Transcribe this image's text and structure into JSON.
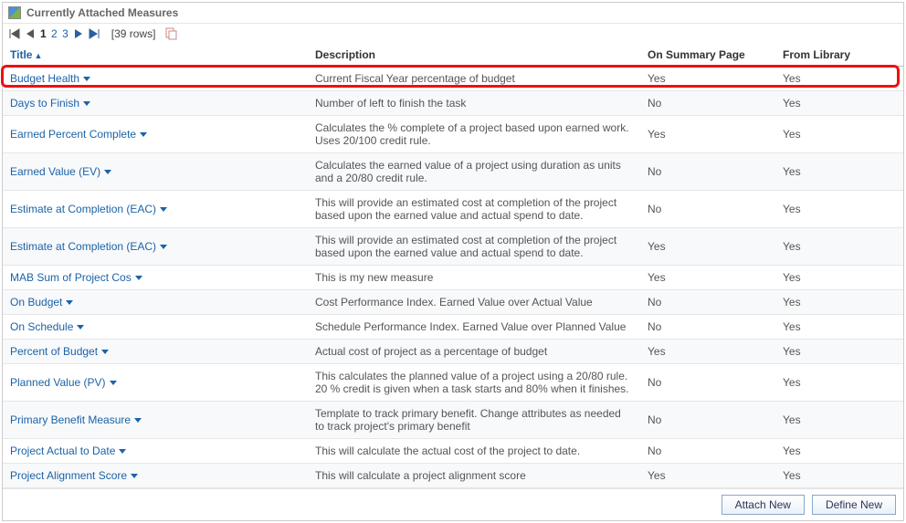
{
  "panel": {
    "title": "Currently Attached Measures"
  },
  "pager": {
    "pages": [
      "1",
      "2",
      "3"
    ],
    "current": "1",
    "row_count_label": "[39 rows]"
  },
  "columns": {
    "title": {
      "label": "Title",
      "sorted": true
    },
    "desc": {
      "label": "Description",
      "sorted": false
    },
    "summary": {
      "label": "On Summary Page",
      "sorted": false
    },
    "library": {
      "label": "From Library",
      "sorted": false
    }
  },
  "rows": [
    {
      "title": "Budget Health",
      "desc": "Current Fiscal Year percentage of budget",
      "summary": "Yes",
      "library": "Yes",
      "highlighted": true
    },
    {
      "title": "Days to Finish",
      "desc": "Number of left to finish the task",
      "summary": "No",
      "library": "Yes"
    },
    {
      "title": "Earned Percent Complete",
      "desc": "Calculates the % complete of a project based upon earned work. Uses 20/100 credit rule.",
      "summary": "Yes",
      "library": "Yes"
    },
    {
      "title": "Earned Value (EV)",
      "desc": "Calculates the earned value of a project using duration as units and a 20/80 credit rule.",
      "summary": "No",
      "library": "Yes"
    },
    {
      "title": "Estimate at Completion (EAC)",
      "desc": "This will provide an estimated cost at completion of the project based upon the earned value and actual spend to date.",
      "summary": "No",
      "library": "Yes"
    },
    {
      "title": "Estimate at Completion (EAC)",
      "desc": "This will provide an estimated cost at completion of the project based upon the earned value and actual spend to date.",
      "summary": "Yes",
      "library": "Yes"
    },
    {
      "title": "MAB Sum of Project Cos",
      "desc": "This is my new measure",
      "summary": "Yes",
      "library": "Yes"
    },
    {
      "title": "On Budget",
      "desc": "Cost Performance Index. Earned Value over Actual Value",
      "summary": "No",
      "library": "Yes"
    },
    {
      "title": "On Schedule",
      "desc": "Schedule Performance Index. Earned Value over Planned Value",
      "summary": "No",
      "library": "Yes"
    },
    {
      "title": "Percent of Budget",
      "desc": "Actual cost of project as a percentage of budget",
      "summary": "Yes",
      "library": "Yes"
    },
    {
      "title": "Planned Value (PV)",
      "desc": "This calculates the planned value of a project using a 20/80 rule. 20 % credit is given when a task starts and 80% when it finishes.",
      "summary": "No",
      "library": "Yes"
    },
    {
      "title": "Primary Benefit Measure",
      "desc": "Template to track primary benefit. Change attributes as needed to track project's primary benefit",
      "summary": "No",
      "library": "Yes"
    },
    {
      "title": "Project Actual to Date",
      "desc": "This will calculate the actual cost of the project to date.",
      "summary": "No",
      "library": "Yes"
    },
    {
      "title": "Project Alignment Score",
      "desc": "This will calculate a project alignment score",
      "summary": "Yes",
      "library": "Yes"
    }
  ],
  "footer": {
    "attach_label": "Attach New",
    "define_label": "Define New"
  },
  "style": {
    "link_color": "#1b63a7",
    "alt_row_bg": "#f8f9fb",
    "border_color": "#e6e6e6",
    "highlight_color": "#e11"
  }
}
